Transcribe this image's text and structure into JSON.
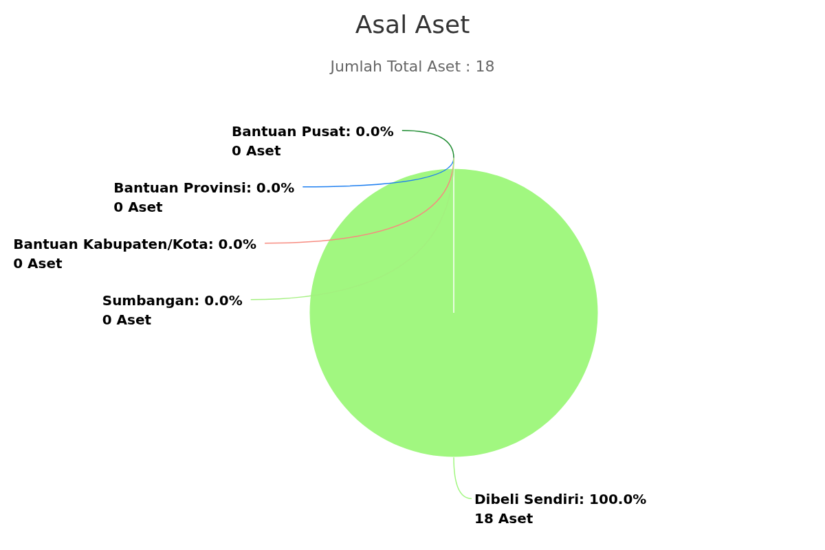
{
  "chart_data": {
    "type": "pie",
    "title": "Asal Aset",
    "subtitle": "Jumlah Total Aset : 18",
    "categories": [
      "Bantuan Pusat",
      "Bantuan Provinsi",
      "Bantuan Kabupaten/Kota",
      "Sumbangan",
      "Dibeli Sendiri"
    ],
    "values": [
      0,
      0,
      0,
      0,
      18
    ],
    "colors": [
      "#1b8a2e",
      "#1e7ff0",
      "#f78a7f",
      "#a3f07f",
      "#a1f780"
    ],
    "value_labels": [
      ": 0.0%\n0 Aset",
      ": 0.0%\n0 Aset",
      ": 0.0%\n0 Aset",
      ": 0.0%\n0 Aset",
      ": 100.0%\n18 Aset"
    ]
  }
}
